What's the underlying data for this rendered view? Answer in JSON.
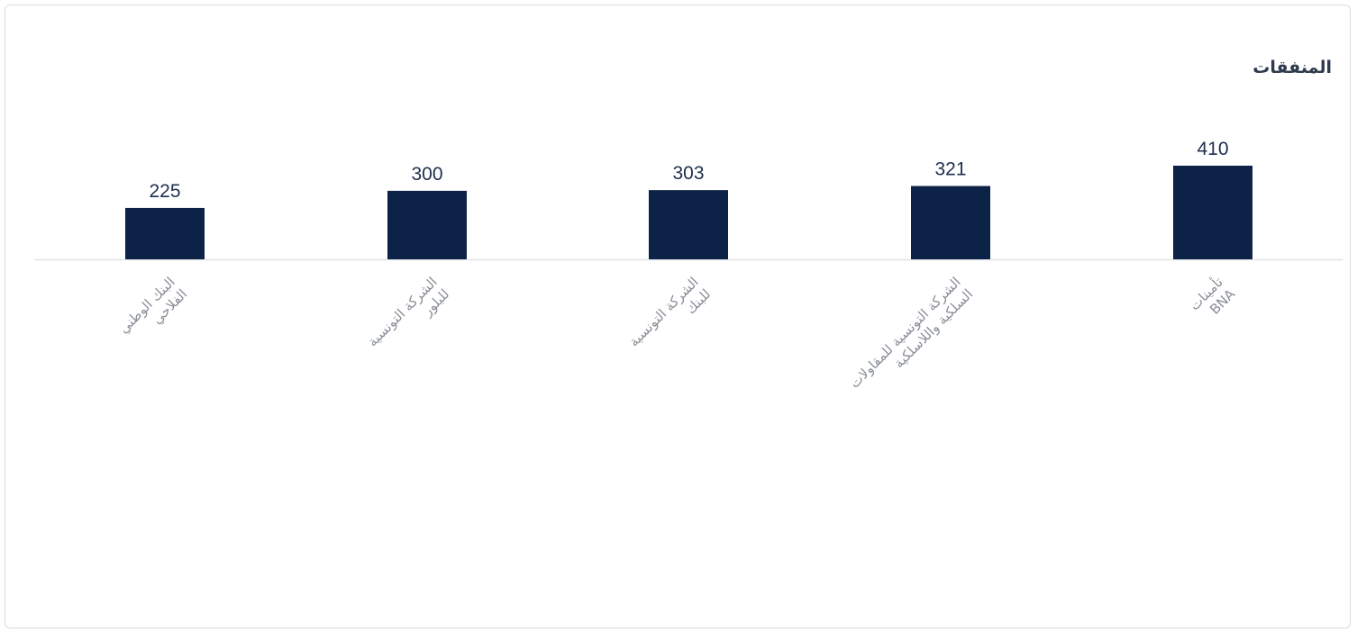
{
  "chart_data": {
    "type": "bar",
    "title": "المنفقات",
    "categories": [
      [
        "تأمينات",
        "BNA"
      ],
      [
        "الشركة التونسية للمقاولات",
        "السلكية واللاسلكية"
      ],
      [
        "الشركة التونسية",
        "للبنك"
      ],
      [
        "الشركة التونسية",
        "للبلور"
      ],
      [
        "البنك الوطني",
        "الفلاحي"
      ]
    ],
    "values": [
      410,
      321,
      303,
      300,
      225
    ],
    "value_labels": [
      "410",
      "321",
      "303",
      "300",
      "225"
    ],
    "bar_color": "#0d2247",
    "axis_color": "#dfe2e6",
    "ylim": [
      0,
      410
    ],
    "grid": false,
    "legend": "none"
  }
}
